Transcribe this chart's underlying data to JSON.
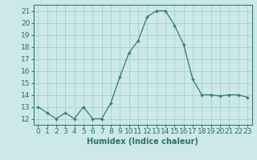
{
  "x": [
    0,
    1,
    2,
    3,
    4,
    5,
    6,
    7,
    8,
    9,
    10,
    11,
    12,
    13,
    14,
    15,
    16,
    17,
    18,
    19,
    20,
    21,
    22,
    23
  ],
  "y": [
    13,
    12.5,
    12,
    12.5,
    12,
    13,
    12,
    12,
    13.3,
    15.5,
    17.5,
    18.5,
    20.5,
    21,
    21,
    19.8,
    18.2,
    15.3,
    14,
    14,
    13.9,
    14,
    14,
    13.8
  ],
  "line_color": "#2e7d6e",
  "marker": "+",
  "bg_color": "#cce8e8",
  "grid_color": "#aacece",
  "xlabel": "Humidex (Indice chaleur)",
  "xlim": [
    -0.5,
    23.5
  ],
  "ylim": [
    11.5,
    21.5
  ],
  "yticks": [
    12,
    13,
    14,
    15,
    16,
    17,
    18,
    19,
    20,
    21
  ],
  "xticks": [
    0,
    1,
    2,
    3,
    4,
    5,
    6,
    7,
    8,
    9,
    10,
    11,
    12,
    13,
    14,
    15,
    16,
    17,
    18,
    19,
    20,
    21,
    22,
    23
  ],
  "xtick_labels": [
    "0",
    "1",
    "2",
    "3",
    "4",
    "5",
    "6",
    "7",
    "8",
    "9",
    "10",
    "11",
    "12",
    "13",
    "14",
    "15",
    "16",
    "17",
    "18",
    "19",
    "20",
    "21",
    "22",
    "23"
  ],
  "label_fontsize": 7,
  "tick_fontsize": 6.5
}
